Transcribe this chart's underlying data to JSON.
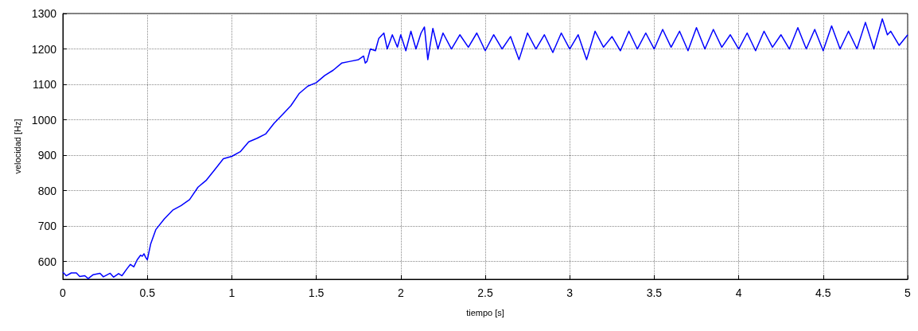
{
  "chart_data": {
    "type": "line",
    "xlabel": "tiempo [s]",
    "ylabel": "velocidad [Hz]",
    "xlim": [
      0,
      5
    ],
    "xticks": [
      0,
      0.5,
      1,
      1.5,
      2,
      2.5,
      3,
      3.5,
      4,
      4.5,
      5
    ],
    "ylim": [
      550,
      1300
    ],
    "yticks": [
      600,
      700,
      800,
      900,
      1000,
      1100,
      1200,
      1300
    ],
    "grid": true,
    "line_style": "solid",
    "marker": "none",
    "series": [
      {
        "color": "#0000ff",
        "x": [
          0,
          0.02,
          0.05,
          0.08,
          0.1,
          0.13,
          0.15,
          0.18,
          0.22,
          0.24,
          0.28,
          0.3,
          0.33,
          0.35,
          0.38,
          0.4,
          0.42,
          0.44,
          0.46,
          0.47,
          0.48,
          0.49,
          0.5,
          0.52,
          0.55,
          0.6,
          0.65,
          0.7,
          0.75,
          0.8,
          0.85,
          0.9,
          0.95,
          1,
          1.05,
          1.1,
          1.15,
          1.2,
          1.25,
          1.3,
          1.35,
          1.4,
          1.45,
          1.5,
          1.55,
          1.6,
          1.65,
          1.7,
          1.75,
          1.78,
          1.79,
          1.8,
          1.82,
          1.85,
          1.87,
          1.9,
          1.92,
          1.95,
          1.98,
          2,
          2.03,
          2.06,
          2.09,
          2.12,
          2.14,
          2.16,
          2.19,
          2.22,
          2.25,
          2.3,
          2.35,
          2.4,
          2.45,
          2.5,
          2.55,
          2.6,
          2.65,
          2.7,
          2.75,
          2.8,
          2.85,
          2.9,
          2.95,
          3,
          3.05,
          3.1,
          3.15,
          3.2,
          3.25,
          3.3,
          3.35,
          3.4,
          3.45,
          3.5,
          3.55,
          3.6,
          3.65,
          3.7,
          3.75,
          3.8,
          3.85,
          3.9,
          3.95,
          4,
          4.05,
          4.1,
          4.15,
          4.2,
          4.25,
          4.3,
          4.35,
          4.4,
          4.45,
          4.5,
          4.55,
          4.6,
          4.65,
          4.7,
          4.75,
          4.8,
          4.85,
          4.88,
          4.9,
          4.95,
          5
        ],
        "values": [
          570,
          560,
          568,
          568,
          558,
          560,
          552,
          563,
          567,
          557,
          567,
          556,
          566,
          560,
          580,
          592,
          585,
          605,
          618,
          615,
          622,
          612,
          605,
          650,
          690,
          720,
          745,
          758,
          775,
          810,
          830,
          860,
          890,
          897,
          910,
          938,
          948,
          960,
          990,
          1015,
          1040,
          1075,
          1095,
          1105,
          1125,
          1140,
          1160,
          1165,
          1170,
          1180,
          1160,
          1165,
          1200,
          1195,
          1230,
          1245,
          1200,
          1240,
          1205,
          1240,
          1195,
          1250,
          1200,
          1245,
          1262,
          1170,
          1258,
          1200,
          1245,
          1200,
          1240,
          1205,
          1245,
          1195,
          1240,
          1200,
          1235,
          1170,
          1245,
          1200,
          1240,
          1190,
          1245,
          1200,
          1240,
          1170,
          1250,
          1205,
          1235,
          1195,
          1250,
          1200,
          1245,
          1200,
          1255,
          1205,
          1250,
          1195,
          1260,
          1200,
          1255,
          1205,
          1240,
          1200,
          1245,
          1195,
          1250,
          1205,
          1240,
          1200,
          1260,
          1200,
          1255,
          1195,
          1265,
          1200,
          1250,
          1200,
          1275,
          1200,
          1285,
          1240,
          1250,
          1210,
          1240
        ]
      }
    ]
  }
}
